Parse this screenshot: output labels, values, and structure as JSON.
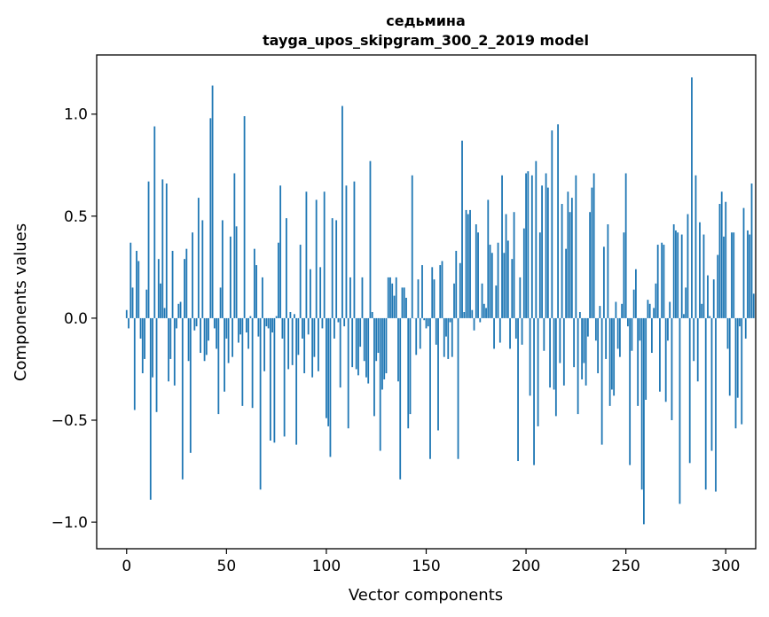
{
  "chart_data": {
    "type": "bar",
    "title": "седьмина",
    "subtitle": "tayga_upos_skipgram_300_2_2019 model",
    "xlabel": "Vector components",
    "ylabel": "Components values",
    "xlim": [
      -15,
      315
    ],
    "ylim": [
      -1.13,
      1.29
    ],
    "xticks": [
      0,
      50,
      100,
      150,
      200,
      250,
      300
    ],
    "xtick_labels": [
      "0",
      "50",
      "100",
      "150",
      "200",
      "250",
      "300"
    ],
    "yticks": [
      -1.0,
      -0.5,
      0.0,
      0.5,
      1.0
    ],
    "ytick_labels": [
      "−1.0",
      "−0.5",
      "0.0",
      "0.5",
      "1.0"
    ],
    "bar_color": "#1f77b4",
    "grid": false,
    "legend": "none",
    "values": [
      0.04,
      -0.05,
      0.37,
      0.15,
      -0.45,
      0.33,
      0.28,
      -0.1,
      -0.27,
      -0.2,
      0.14,
      0.67,
      -0.89,
      -0.29,
      0.94,
      -0.46,
      0.29,
      0.17,
      0.68,
      0.05,
      0.66,
      -0.31,
      -0.2,
      0.33,
      -0.33,
      -0.05,
      0.07,
      0.08,
      -0.79,
      0.29,
      0.34,
      -0.21,
      -0.66,
      0.42,
      -0.06,
      -0.04,
      0.59,
      -0.17,
      0.48,
      -0.21,
      -0.18,
      -0.11,
      0.98,
      1.14,
      -0.05,
      -0.15,
      -0.47,
      0.15,
      0.48,
      -0.36,
      -0.1,
      -0.22,
      0.4,
      -0.19,
      0.71,
      0.45,
      -0.12,
      -0.08,
      -0.43,
      0.99,
      -0.07,
      -0.15,
      0.01,
      -0.44,
      0.34,
      0.26,
      -0.09,
      -0.84,
      0.2,
      -0.26,
      -0.04,
      -0.05,
      -0.6,
      -0.07,
      -0.61,
      0.01,
      0.37,
      0.65,
      -0.1,
      -0.58,
      0.49,
      -0.25,
      0.03,
      -0.23,
      0.02,
      -0.62,
      -0.18,
      0.36,
      -0.1,
      -0.27,
      0.62,
      -0.08,
      0.24,
      -0.29,
      -0.19,
      0.58,
      -0.26,
      0.25,
      -0.05,
      0.62,
      -0.49,
      -0.53,
      -0.68,
      0.49,
      -0.1,
      0.48,
      -0.02,
      -0.34,
      1.04,
      -0.04,
      0.65,
      -0.54,
      0.2,
      -0.24,
      0.67,
      -0.25,
      -0.28,
      -0.14,
      0.2,
      -0.21,
      -0.29,
      -0.32,
      0.77,
      0.03,
      -0.48,
      -0.21,
      -0.17,
      -0.65,
      -0.35,
      -0.3,
      -0.27,
      0.2,
      0.2,
      0.17,
      0.11,
      0.2,
      -0.31,
      -0.79,
      0.15,
      0.15,
      0.1,
      -0.54,
      -0.47,
      0.7,
      0.0,
      -0.18,
      0.19,
      -0.15,
      0.26,
      -0.01,
      -0.05,
      -0.04,
      -0.69,
      0.25,
      0.19,
      -0.13,
      -0.55,
      0.26,
      0.28,
      -0.19,
      -0.09,
      -0.2,
      -0.02,
      -0.19,
      0.17,
      0.33,
      -0.69,
      0.27,
      0.87,
      0.03,
      0.53,
      0.51,
      0.53,
      0.04,
      -0.06,
      0.46,
      0.42,
      -0.02,
      0.17,
      0.07,
      0.05,
      0.58,
      0.36,
      0.32,
      -0.15,
      0.16,
      0.37,
      -0.12,
      0.7,
      0.32,
      0.51,
      0.38,
      -0.15,
      0.29,
      0.52,
      -0.1,
      -0.7,
      0.2,
      -0.13,
      0.44,
      0.71,
      0.72,
      -0.38,
      0.7,
      -0.72,
      0.77,
      -0.53,
      0.42,
      0.65,
      -0.16,
      0.71,
      0.64,
      -0.34,
      0.92,
      -0.35,
      -0.48,
      0.95,
      -0.22,
      0.56,
      -0.33,
      0.34,
      0.62,
      0.52,
      0.59,
      -0.24,
      0.7,
      -0.47,
      0.03,
      -0.3,
      -0.22,
      -0.33,
      -0.09,
      0.52,
      0.64,
      0.71,
      -0.11,
      -0.27,
      0.06,
      -0.62,
      0.35,
      -0.2,
      0.46,
      -0.43,
      -0.35,
      -0.38,
      0.08,
      -0.15,
      -0.19,
      0.07,
      0.42,
      0.71,
      -0.04,
      -0.72,
      -0.16,
      0.14,
      0.24,
      -0.43,
      -0.11,
      -0.84,
      -1.01,
      -0.4,
      0.09,
      0.07,
      -0.17,
      0.05,
      0.17,
      0.36,
      -0.36,
      0.37,
      0.36,
      -0.41,
      -0.11,
      0.08,
      -0.5,
      0.46,
      0.43,
      0.42,
      -0.91,
      0.41,
      0.02,
      0.15,
      0.51,
      -0.71,
      1.18,
      -0.21,
      0.7,
      -0.31,
      0.47,
      0.07,
      0.41,
      -0.84,
      0.21,
      0.01,
      -0.65,
      0.19,
      -0.85,
      0.31,
      0.56,
      0.62,
      0.4,
      0.57,
      -0.15,
      -0.38,
      0.42,
      0.42,
      -0.54,
      -0.39,
      -0.04,
      -0.52,
      0.54,
      -0.1,
      0.43,
      0.41,
      0.66,
      0.12
    ]
  }
}
